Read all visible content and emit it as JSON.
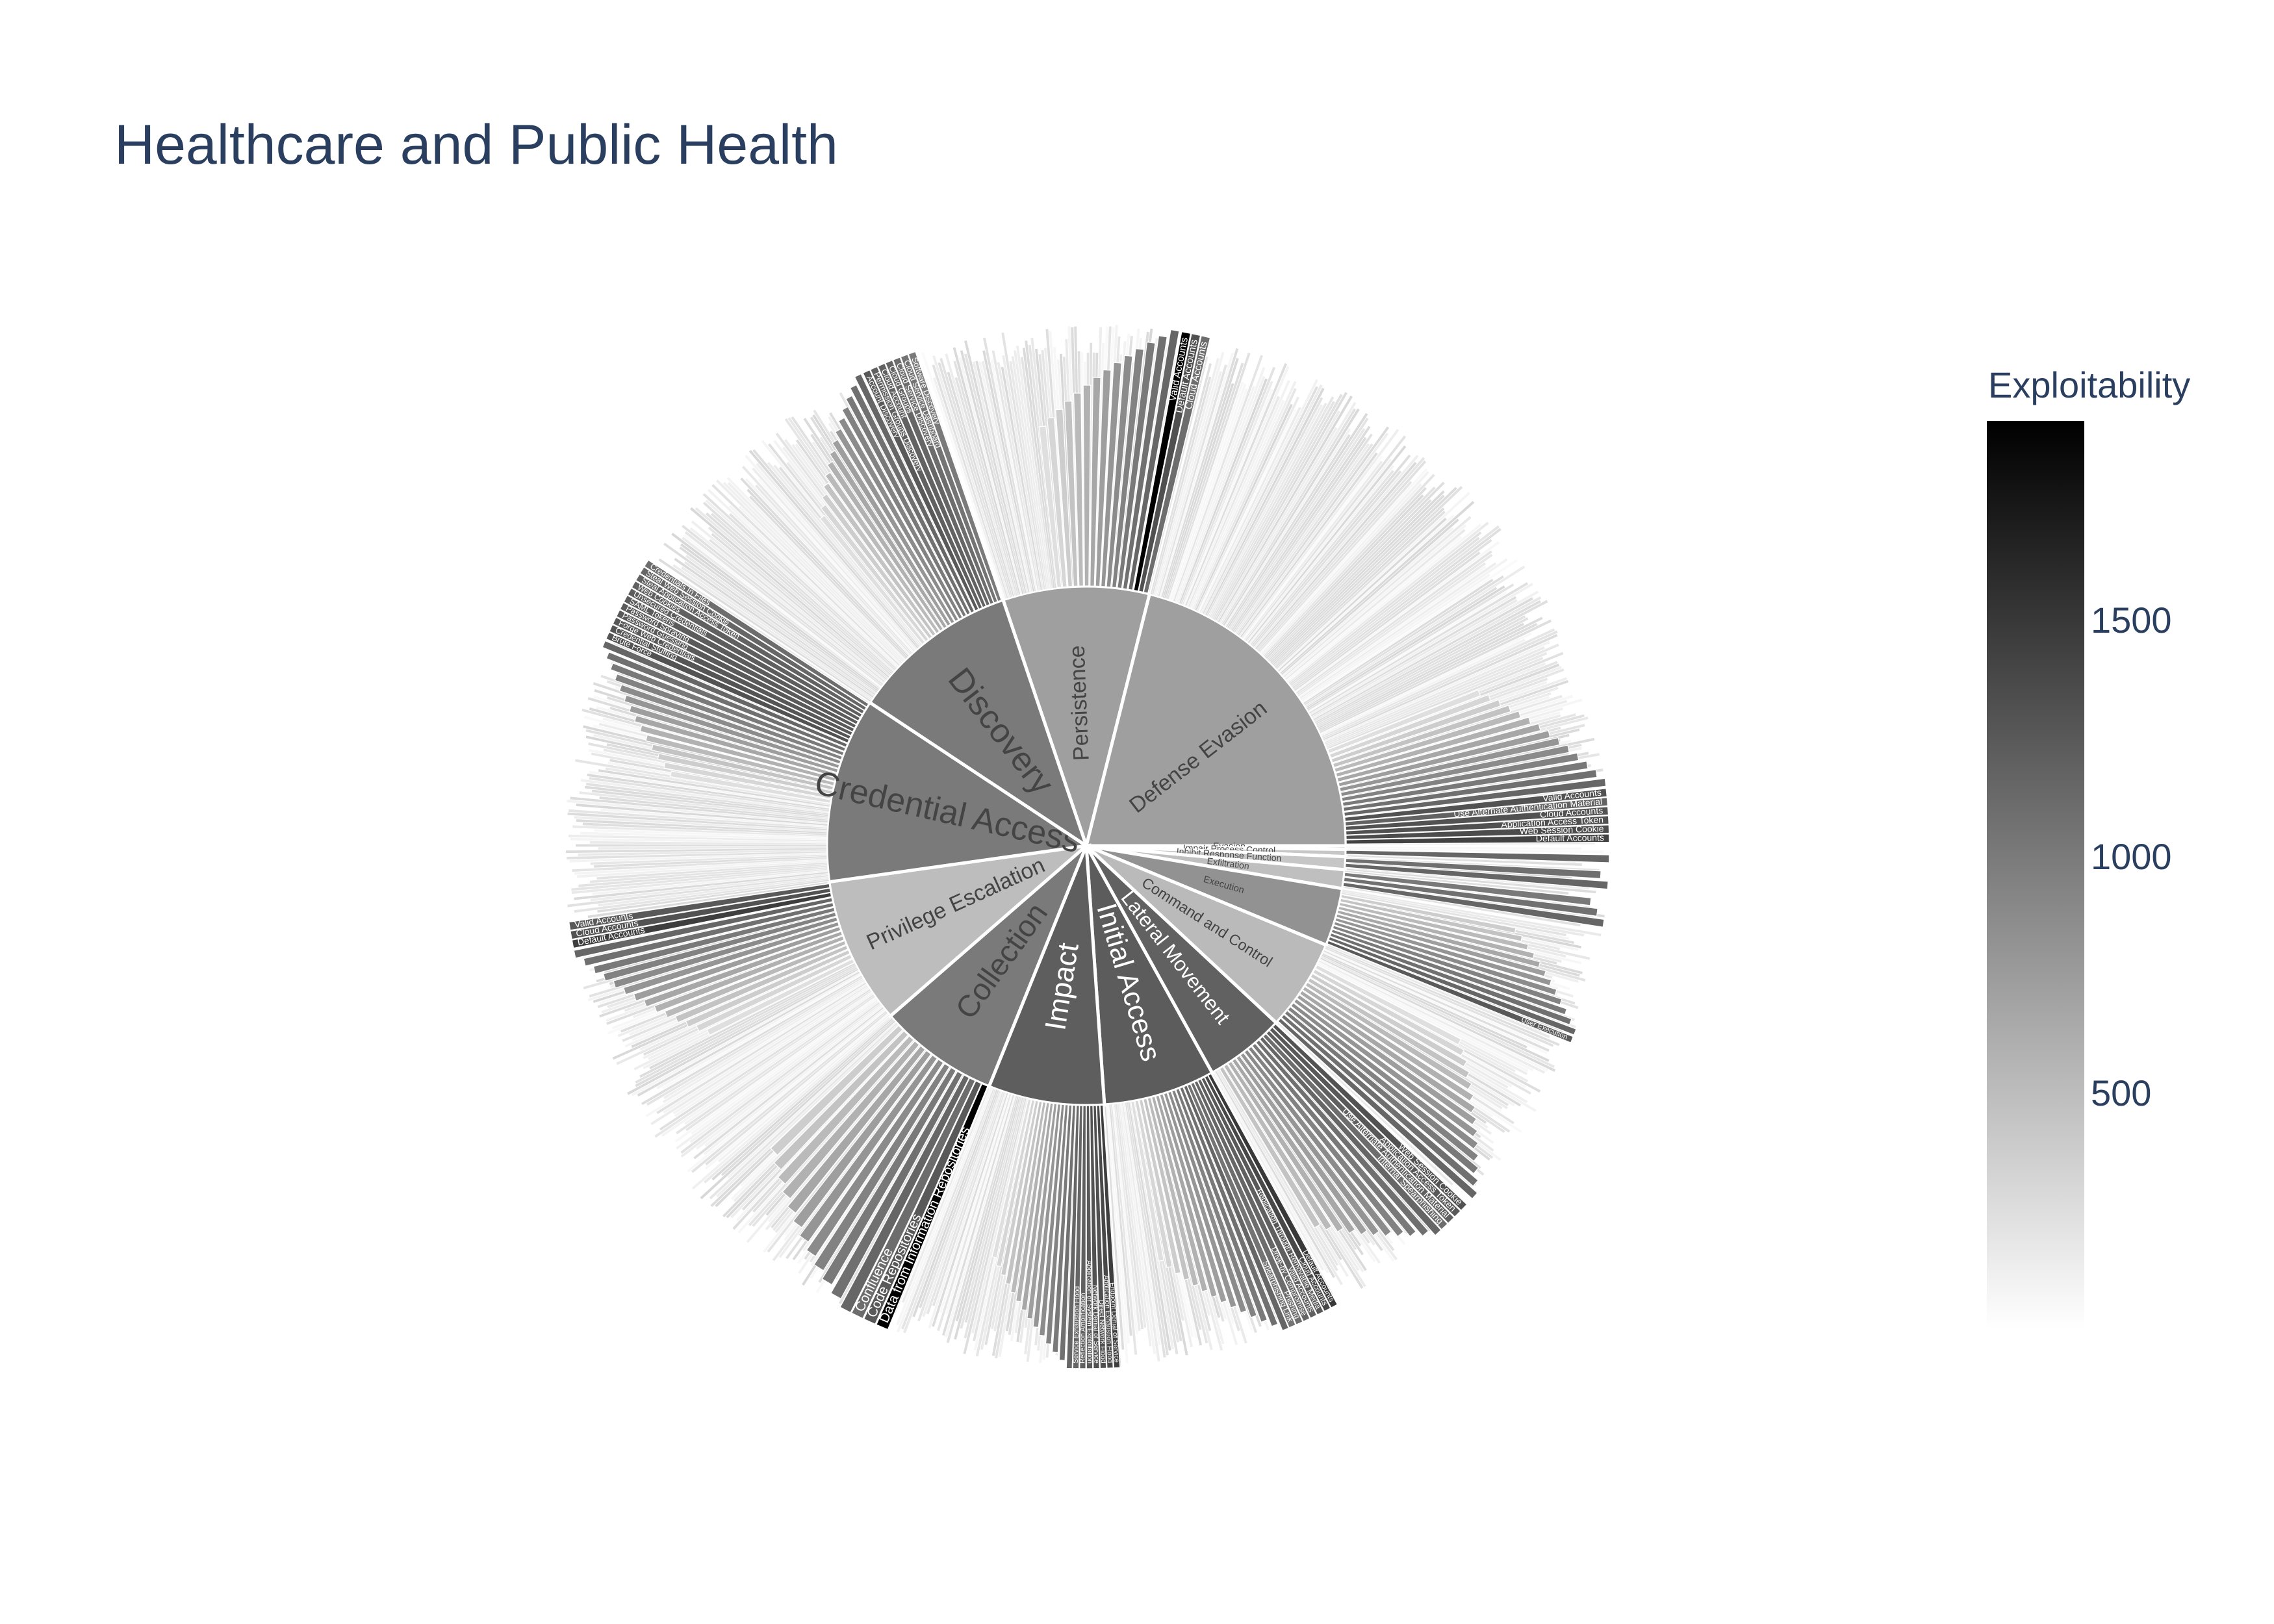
{
  "title": "Healthcare and Public Health",
  "colorbar": {
    "title": "Exploitability",
    "ticks": [
      500,
      1000,
      1500
    ],
    "range": [
      0,
      1920
    ],
    "colorscale": [
      "#ffffff",
      "#000000"
    ]
  },
  "chart_data": {
    "type": "sunburst",
    "title": "Healthcare and Public Health",
    "color_metric": "Exploitability",
    "tactics": [
      {
        "name": "Persistence",
        "value": 720,
        "children": [
          {
            "name": "Valid Accounts",
            "value": 1920
          },
          {
            "name": "Default Accounts",
            "value": 1320
          },
          {
            "name": "Cloud Accounts",
            "value": 1100
          }
        ]
      },
      {
        "name": "Defense Evasion",
        "value": 720,
        "children": [
          {
            "name": "Valid Accounts",
            "value": 1300
          },
          {
            "name": "Use Alternate Authentication Material",
            "value": 1180
          },
          {
            "name": "Cloud Accounts",
            "value": 1300
          },
          {
            "name": "Application Access Token",
            "value": 1320
          },
          {
            "name": "Web Session Cookie",
            "value": 1350
          },
          {
            "name": "Default Accounts",
            "value": 1420
          }
        ]
      },
      {
        "name": "Evasion",
        "value": 400
      },
      {
        "name": "Impair Process Control",
        "value": 420
      },
      {
        "name": "Inhibit Response Function",
        "value": 430
      },
      {
        "name": "Exfiltration",
        "value": 480
      },
      {
        "name": "Execution",
        "value": 820,
        "children": [
          {
            "name": "User Execution",
            "value": 1250
          }
        ]
      },
      {
        "name": "Command and Control",
        "value": 520
      },
      {
        "name": "Lateral Movement",
        "value": 1190,
        "children": [
          {
            "name": "Web Session Cookie",
            "value": 1300
          },
          {
            "name": "Application Access Token",
            "value": 1250
          },
          {
            "name": "Use Alternate Authentication Material",
            "value": 1200
          },
          {
            "name": "Internal Spearphishing",
            "value": 1100
          }
        ]
      },
      {
        "name": "Initial Access",
        "value": 1230,
        "children": [
          {
            "name": "Default Accounts",
            "value": 1500
          },
          {
            "name": "Cloud Accounts",
            "value": 1380
          },
          {
            "name": "Replication Through Removable Media",
            "value": 1250
          },
          {
            "name": "Valid Accounts",
            "value": 1200
          },
          {
            "name": "Drive-by Compromise",
            "value": 1150
          },
          {
            "name": "Phishing",
            "value": 1100
          },
          {
            "name": "Spearphishing Link",
            "value": 1050
          }
        ]
      },
      {
        "name": "Impact",
        "value": 1210,
        "children": [
          {
            "name": "Endpoint Denial of Service",
            "value": 1450
          },
          {
            "name": "Application Exhaustion Flood",
            "value": 1380
          },
          {
            "name": "Direct Network Flood",
            "value": 1320
          },
          {
            "name": "Network Denial of Service",
            "value": 1300
          },
          {
            "name": "Application or System Exploitation",
            "value": 1250
          },
          {
            "name": "Reflection Amplification",
            "value": 1200
          },
          {
            "name": "Service Exhaustion Flood",
            "value": 1150
          }
        ]
      },
      {
        "name": "Collection",
        "value": 1000,
        "children": [
          {
            "name": "Data from Information Repositories",
            "value": 1920
          },
          {
            "name": "Code Repositories",
            "value": 1250
          },
          {
            "name": "Confluence",
            "value": 1100
          }
        ]
      },
      {
        "name": "Privilege Escalation",
        "value": 500,
        "children": [
          {
            "name": "Default Accounts",
            "value": 1450
          },
          {
            "name": "Cloud Accounts",
            "value": 1300
          },
          {
            "name": "Valid Accounts",
            "value": 1250
          }
        ]
      },
      {
        "name": "Credential Access",
        "value": 1000,
        "children": [
          {
            "name": "Brute Force",
            "value": 1300
          },
          {
            "name": "Credential Stuffing",
            "value": 1280
          },
          {
            "name": "Forge Web Credentials",
            "value": 1260
          },
          {
            "name": "Password Guessing",
            "value": 1250
          },
          {
            "name": "Password Spraying",
            "value": 1240
          },
          {
            "name": "SAML Tokens",
            "value": 1230
          },
          {
            "name": "Unsecured Credentials",
            "value": 1220
          },
          {
            "name": "Web Cookies",
            "value": 1200
          },
          {
            "name": "Steal Application Access Token",
            "value": 1180
          },
          {
            "name": "Steal Web Session Cookie",
            "value": 1150
          },
          {
            "name": "Credentials In Files",
            "value": 1100
          }
        ]
      },
      {
        "name": "Discovery",
        "value": 1000,
        "children": [
          {
            "name": "Account Discovery",
            "value": 1250
          },
          {
            "name": "Permission Groups Discovery",
            "value": 1200
          },
          {
            "name": "Cloud Account",
            "value": 1180
          },
          {
            "name": "Cloud Groups",
            "value": 1150
          },
          {
            "name": "Cloud Service Discovery",
            "value": 1100
          },
          {
            "name": "Cloud Service Dashboard",
            "value": 1050
          },
          {
            "name": "Software Discovery",
            "value": 1000
          }
        ]
      }
    ]
  }
}
